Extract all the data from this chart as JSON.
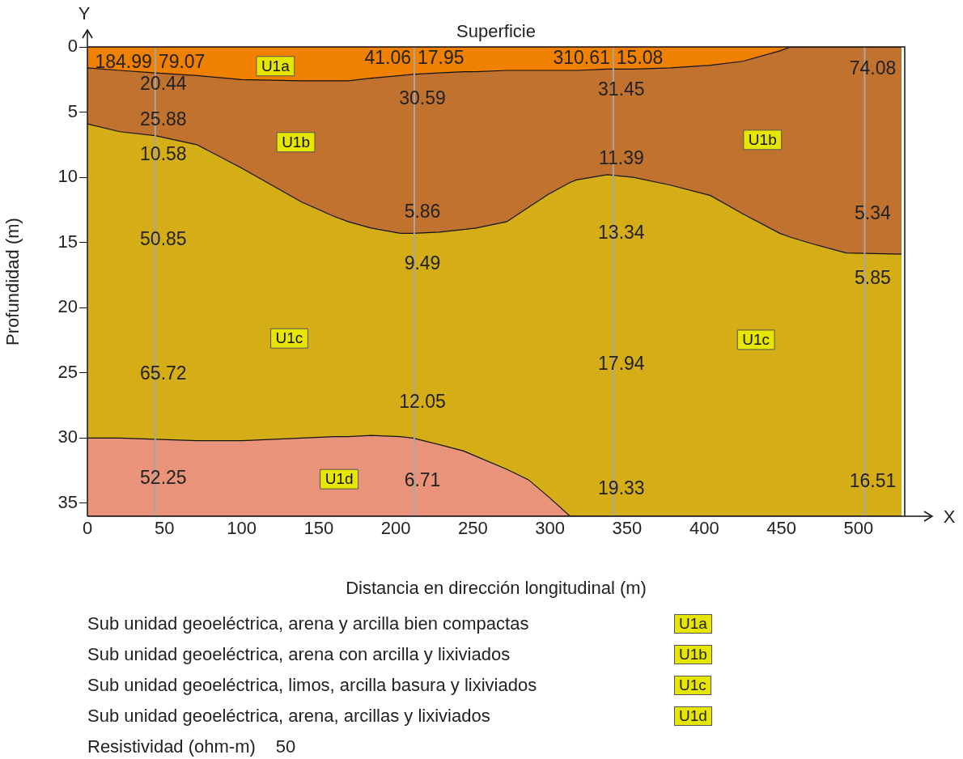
{
  "chart_data": {
    "type": "area",
    "stacked": true,
    "xlabel": "Distancia en dirección longitudinal (m)",
    "ylabel": "Profundidad (m)",
    "x": [
      0,
      21,
      44,
      71,
      100,
      139,
      160,
      169,
      184,
      203,
      211,
      228,
      244,
      252,
      272,
      286,
      299,
      313,
      317,
      337,
      354,
      378,
      404,
      425,
      449,
      456,
      470,
      492,
      528
    ],
    "series": [
      {
        "color": "#f08000",
        "values": [
          1.6,
          1.8,
          2.0,
          2.2,
          2.5,
          2.6,
          2.6,
          2.6,
          2.4,
          2.2,
          2.1,
          2.0,
          1.9,
          1.9,
          1.8,
          1.8,
          1.8,
          1.8,
          1.8,
          1.7,
          1.7,
          1.6,
          1.4,
          1.1,
          0.3,
          0,
          0,
          0,
          0
        ]
      },
      {
        "color": "#c0722e",
        "values": [
          4.3,
          4.7,
          4.8,
          5.3,
          6.8,
          9.3,
          10.4,
          10.8,
          11.5,
          12.1,
          12.2,
          12.2,
          12.1,
          12,
          11.6,
          10.5,
          9.5,
          8.6,
          8.4,
          8.1,
          8.3,
          9,
          10,
          11.7,
          14,
          14.6,
          15.1,
          15.8,
          15.9
        ]
      },
      {
        "color": "#d4ad17",
        "values": [
          24.1,
          23.5,
          23.3,
          22.7,
          20.9,
          18.1,
          16.9,
          16.5,
          15.9,
          15.6,
          15.7,
          16.3,
          17,
          17.5,
          19,
          20.9,
          23.2,
          25.6,
          25.8,
          26.2,
          26,
          25.4,
          24.6,
          23.2,
          21.7,
          21.4,
          20.9,
          20.2,
          20.1
        ]
      },
      {
        "color": "#e8937a",
        "values": [
          6,
          6,
          5.9,
          5.8,
          5.8,
          6,
          6.1,
          6.1,
          6.2,
          6.1,
          6,
          5.5,
          5,
          4.6,
          3.6,
          2.8,
          1.5,
          0,
          0,
          0,
          0,
          0,
          0,
          0,
          0,
          0,
          0,
          0,
          0
        ]
      }
    ],
    "xlim": [
      0,
      530
    ],
    "ylim": [
      36,
      0
    ],
    "xticks": [
      0,
      50,
      100,
      150,
      200,
      250,
      300,
      350,
      400,
      450,
      500
    ],
    "yticks": [
      0,
      5,
      10,
      15,
      20,
      25,
      30,
      35
    ],
    "grid": false,
    "ref_lines": [
      {
        "axis": "x",
        "value": 44,
        "color": "#a6a6a6"
      },
      {
        "axis": "x",
        "value": 212,
        "color": "#a6a6a6"
      },
      {
        "axis": "x",
        "value": 341,
        "color": "#a6a6a6"
      },
      {
        "axis": "x",
        "value": 504,
        "color": "#a6a6a6"
      }
    ],
    "annotations": [
      "Superficie",
      "Y",
      "X",
      "Sub unidad geoeléctrica, arena y arcilla bien compactas",
      "U1a",
      "Sub unidad geoeléctrica, arena con arcilla y lixiviados",
      "U1b",
      "Sub unidad geoeléctrica, limos, arcilla basura y lixiviados",
      "U1c",
      "Sub unidad geoeléctrica, arena, arcillas y lixiviados",
      "U1d",
      "Resistividad (ohm-m)",
      "50",
      "U1a",
      "U1b",
      "U1b",
      "U1c",
      "U1c",
      "U1d",
      {
        "text": "184.99",
        "x": 44,
        "y": 1.2
      },
      {
        "text": "79.07",
        "x": 44,
        "y": 1.2
      },
      {
        "text": "41.06",
        "x": 212,
        "y": 0.9
      },
      {
        "text": "17.95",
        "x": 212,
        "y": 0.9
      },
      {
        "text": "310.61",
        "x": 341,
        "y": 0.9
      },
      {
        "text": "15.08",
        "x": 341,
        "y": 0.9
      },
      {
        "text": "74.08",
        "x": 504,
        "y": 1.7
      },
      {
        "text": "20.44",
        "x": 44,
        "y": 2.9
      },
      {
        "text": "30.59",
        "x": 212,
        "y": 4.0
      },
      {
        "text": "31.45",
        "x": 341,
        "y": 3.3
      },
      {
        "text": "25.88",
        "x": 44,
        "y": 5.6
      },
      {
        "text": "10.58",
        "x": 44,
        "y": 8.3
      },
      {
        "text": "11.39",
        "x": 341,
        "y": 8.6
      },
      {
        "text": "5.86",
        "x": 212,
        "y": 12.7
      },
      {
        "text": "5.34",
        "x": 504,
        "y": 12.8
      },
      {
        "text": "50.85",
        "x": 44,
        "y": 14.8
      },
      {
        "text": "13.34",
        "x": 341,
        "y": 14.3
      },
      {
        "text": "9.49",
        "x": 212,
        "y": 16.7
      },
      {
        "text": "5.85",
        "x": 504,
        "y": 17.8
      },
      {
        "text": "65.72",
        "x": 44,
        "y": 25.1
      },
      {
        "text": "17.94",
        "x": 341,
        "y": 24.4
      },
      {
        "text": "12.05",
        "x": 212,
        "y": 27.3
      },
      {
        "text": "52.25",
        "x": 44,
        "y": 33.1
      },
      {
        "text": "6.71",
        "x": 212,
        "y": 33.3
      },
      {
        "text": "19.33",
        "x": 341,
        "y": 33.9
      },
      {
        "text": "16.51",
        "x": 504,
        "y": 33.4
      }
    ]
  }
}
